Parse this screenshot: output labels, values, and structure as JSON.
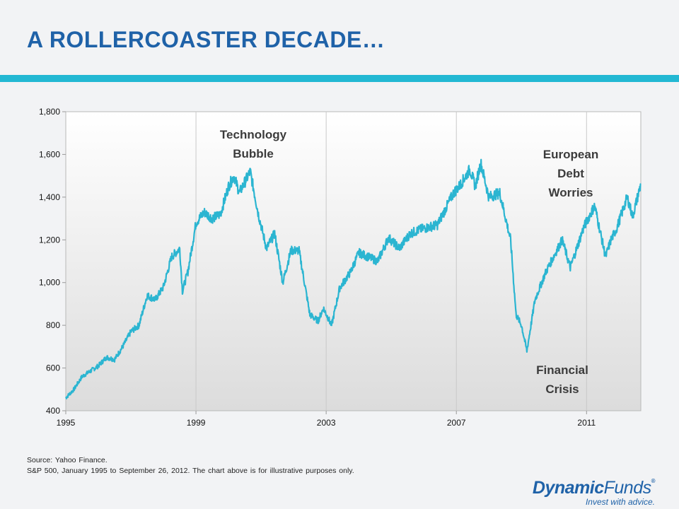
{
  "slide": {
    "title": "A ROLLERCOASTER DECADE…",
    "source": "Source: Yahoo Finance.",
    "note": "S&P 500, January 1995 to September 26, 2012. The chart above is for illustrative purposes only.",
    "logo": {
      "brand_bold": "Dynamic",
      "brand_thin": "Funds",
      "reg": "®",
      "tagline": "Invest with advice."
    },
    "colors": {
      "title": "#1f62a8",
      "rule": "#23b8d3",
      "line": "#2bb5d1"
    }
  },
  "chart_data": {
    "type": "line",
    "title": "",
    "xlabel": "",
    "ylabel": "",
    "x_ticks": [
      "1995",
      "1999",
      "2003",
      "2007",
      "2011"
    ],
    "y_ticks": [
      "1,800",
      "1,600",
      "1,400",
      "1,200",
      "1,000",
      "800",
      "600",
      "400"
    ],
    "xlim": [
      "1995-01",
      "2012-09"
    ],
    "ylim": [
      400,
      1800
    ],
    "grid": "vertical",
    "series": [
      {
        "name": "",
        "x": [
          "1995-01",
          "1995-04",
          "1995-07",
          "1995-10",
          "1996-01",
          "1996-04",
          "1996-07",
          "1996-10",
          "1997-01",
          "1997-04",
          "1997-07",
          "1997-10",
          "1998-01",
          "1998-04",
          "1998-07",
          "1998-08",
          "1998-10",
          "1999-01",
          "1999-04",
          "1999-07",
          "1999-10",
          "2000-01",
          "2000-03",
          "2000-05",
          "2000-09",
          "2000-12",
          "2001-03",
          "2001-06",
          "2001-09",
          "2001-12",
          "2002-03",
          "2002-07",
          "2002-10",
          "2002-12",
          "2003-03",
          "2003-06",
          "2003-10",
          "2004-01",
          "2004-08",
          "2004-12",
          "2005-04",
          "2005-08",
          "2005-12",
          "2006-06",
          "2006-12",
          "2007-02",
          "2007-06",
          "2007-08",
          "2007-10",
          "2008-01",
          "2008-05",
          "2008-09",
          "2008-11",
          "2009-01",
          "2009-03",
          "2009-06",
          "2009-10",
          "2010-04",
          "2010-07",
          "2010-12",
          "2011-04",
          "2011-08",
          "2011-10",
          "2011-12",
          "2012-04",
          "2012-06",
          "2012-09"
        ],
        "values": [
          460,
          500,
          560,
          585,
          610,
          650,
          640,
          700,
          770,
          800,
          940,
          920,
          980,
          1120,
          1160,
          960,
          1050,
          1280,
          1330,
          1300,
          1320,
          1450,
          1500,
          1420,
          1520,
          1320,
          1160,
          1230,
          1000,
          1150,
          1150,
          850,
          820,
          880,
          800,
          975,
          1050,
          1140,
          1100,
          1210,
          1160,
          1230,
          1250,
          1270,
          1420,
          1450,
          1530,
          1450,
          1560,
          1400,
          1420,
          1200,
          850,
          800,
          680,
          920,
          1050,
          1200,
          1070,
          1260,
          1360,
          1120,
          1200,
          1250,
          1400,
          1310,
          1460
        ]
      }
    ],
    "annotations": [
      {
        "text": [
          "Technology",
          "Bubble"
        ]
      },
      {
        "text": [
          "European",
          "Debt",
          "Worries"
        ]
      },
      {
        "text": [
          "Financial",
          "Crisis"
        ]
      }
    ]
  }
}
